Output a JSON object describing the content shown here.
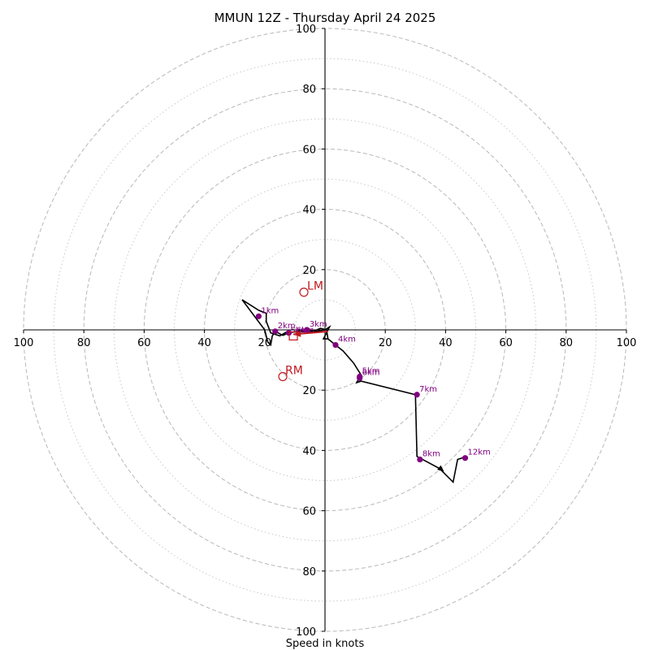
{
  "chart_data": {
    "type": "hodograph",
    "title": "MMUN 12Z - Thursday April 24 2025",
    "xlabel": "Speed in knots",
    "ylabel": "",
    "xlim": [
      -100,
      100
    ],
    "ylim": [
      -100,
      100
    ],
    "rings_major": [
      20,
      40,
      60,
      80,
      100
    ],
    "rings_minor": [
      10,
      30,
      50,
      70,
      90
    ],
    "x_tick_labels": [
      "100",
      "80",
      "60",
      "40",
      "20",
      "",
      "20",
      "40",
      "60",
      "80",
      "100"
    ],
    "x_tick_values": [
      -100,
      -80,
      -60,
      -40,
      -20,
      0,
      20,
      40,
      60,
      80,
      100
    ],
    "y_tick_labels": [
      "100",
      "80",
      "60",
      "40",
      "20",
      "20",
      "40",
      "60",
      "80",
      "100"
    ],
    "y_tick_values": [
      100,
      80,
      60,
      40,
      20,
      -20,
      -40,
      -60,
      -80,
      -100
    ],
    "trace": {
      "color": "#000000",
      "points": [
        [
          1,
          -3
        ],
        [
          0.5,
          0
        ],
        [
          -1.5,
          0.5
        ],
        [
          -4,
          -0.5
        ],
        [
          -13,
          -0.8
        ],
        [
          -15,
          -2
        ],
        [
          -18,
          -1
        ],
        [
          -19.5,
          2.8
        ],
        [
          -19.5,
          5.5
        ],
        [
          -22,
          6.5
        ],
        [
          -27.5,
          10
        ],
        [
          -20,
          0
        ],
        [
          -19,
          -4
        ],
        [
          -18,
          -5
        ],
        [
          -17.5,
          -2
        ],
        [
          -16.5,
          -0.5
        ],
        [
          -14,
          -1.8
        ],
        [
          -12,
          -1
        ],
        [
          -6.5,
          0
        ],
        [
          -3,
          -0.5
        ],
        [
          0,
          0
        ],
        [
          1.5,
          1
        ],
        [
          0,
          -2
        ],
        [
          -0.5,
          -3
        ],
        [
          1,
          -3
        ],
        [
          3.5,
          -5
        ],
        [
          6,
          -7
        ],
        [
          9.5,
          -11
        ],
        [
          12,
          -15
        ],
        [
          10.5,
          -17.5
        ],
        [
          12,
          -17
        ],
        [
          30,
          -21.5
        ],
        [
          30.5,
          -42
        ],
        [
          38,
          -46
        ],
        [
          42.5,
          -50.5
        ],
        [
          44,
          -43
        ],
        [
          47,
          -42
        ]
      ],
      "arrow_at": [
        [
          37,
          -45
        ],
        [
          39.5,
          -47
        ]
      ]
    },
    "height_markers": {
      "color": "#800080",
      "points": [
        {
          "label": "1km",
          "x": -22,
          "y": 4.5
        },
        {
          "label": "2km",
          "x": -16.5,
          "y": -0.5
        },
        {
          "label": "3km",
          "x": -6,
          "y": 0
        },
        {
          "label": "",
          "x": -12,
          "y": -1
        },
        {
          "label": "4km",
          "x": 3.5,
          "y": -5
        },
        {
          "label": "5km",
          "x": 11.5,
          "y": -15.5
        },
        {
          "label": "6km",
          "x": 11.5,
          "y": -16
        },
        {
          "label": "7km",
          "x": 30.5,
          "y": -21.5
        },
        {
          "label": "8km",
          "x": 31.5,
          "y": -43
        },
        {
          "label": "12km",
          "x": 46.5,
          "y": -42.5
        }
      ],
      "mid_labels": [
        {
          "label": "5km",
          "x": -11.5,
          "y": -1.2
        },
        {
          "label": "6km",
          "x": -9.5,
          "y": -1.2
        }
      ]
    },
    "storm_motion": {
      "color": "#c0181f",
      "left_mover": {
        "label": "LM",
        "x": -7,
        "y": 12.5
      },
      "right_mover": {
        "label": "RM",
        "x": -14,
        "y": -15.5
      },
      "mean_wind": {
        "x": -10.5,
        "y": -2
      },
      "vector": {
        "from": [
          1,
          -0.5
        ],
        "to": [
          -10.5,
          -1.5
        ]
      }
    }
  }
}
